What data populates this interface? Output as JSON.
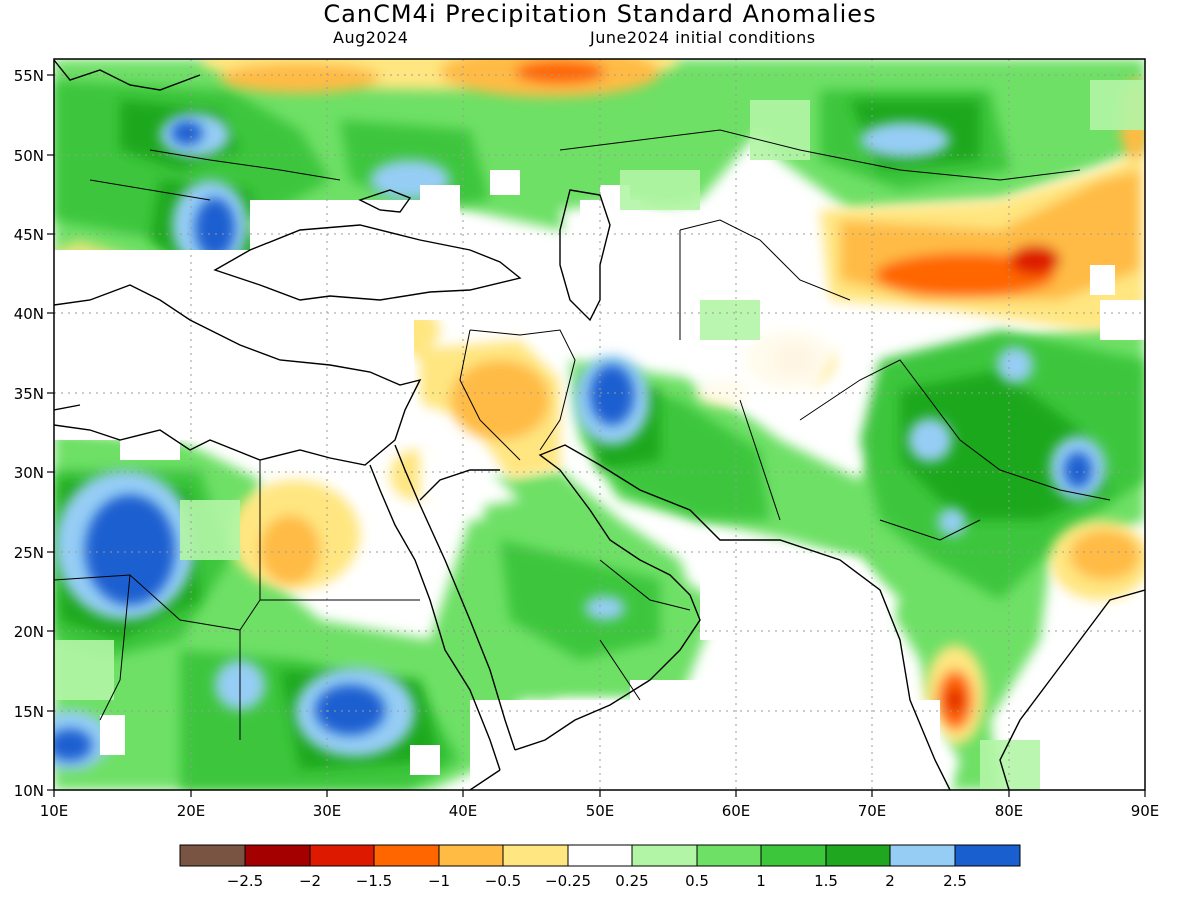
{
  "title": "CanCM4i Precipitation Standard Anomalies",
  "valid_month": "Aug2024",
  "init_conditions": "June2024 initial conditions",
  "map": {
    "lon_range": [
      10,
      90
    ],
    "lat_range": [
      10,
      56
    ],
    "lon_labels": [
      "10E",
      "20E",
      "30E",
      "40E",
      "50E",
      "60E",
      "70E",
      "80E",
      "90E"
    ],
    "lat_labels": [
      "10N",
      "15N",
      "20N",
      "25N",
      "30N",
      "35N",
      "40N",
      "45N",
      "50N",
      "55N"
    ],
    "grid": true
  },
  "colorbar": {
    "colors": [
      "#7a5443",
      "#a50000",
      "#dd1a00",
      "#ff6600",
      "#ffbb44",
      "#ffe680",
      "#ffffff",
      "#b3f5a6",
      "#6ee066",
      "#3cc63c",
      "#1fa81f",
      "#96cdf5",
      "#1a5fd0"
    ],
    "labels": [
      "−2.5",
      "−2",
      "−1.5",
      "−1",
      "−0.5",
      "−0.25",
      "0.25",
      "0.5",
      "1",
      "1.5",
      "2",
      "2.5"
    ]
  },
  "regions": [
    {
      "name": "central-asia-dry-band",
      "lon": [
        70,
        90
      ],
      "lat": [
        39,
        46
      ],
      "level": "orange"
    },
    {
      "name": "eastern-europe-wet",
      "lon": [
        15,
        35
      ],
      "lat": [
        42,
        55
      ],
      "level": "green"
    },
    {
      "name": "iran-wet-core",
      "lon": [
        49,
        53
      ],
      "lat": [
        32,
        37
      ],
      "level": "dark-blue"
    },
    {
      "name": "sahel-wet-core",
      "lon": [
        12,
        20
      ],
      "lat": [
        20,
        28
      ],
      "level": "dark-blue"
    },
    {
      "name": "india-dry-spot",
      "lon": [
        75,
        78
      ],
      "lat": [
        13,
        17
      ],
      "level": "red"
    }
  ]
}
